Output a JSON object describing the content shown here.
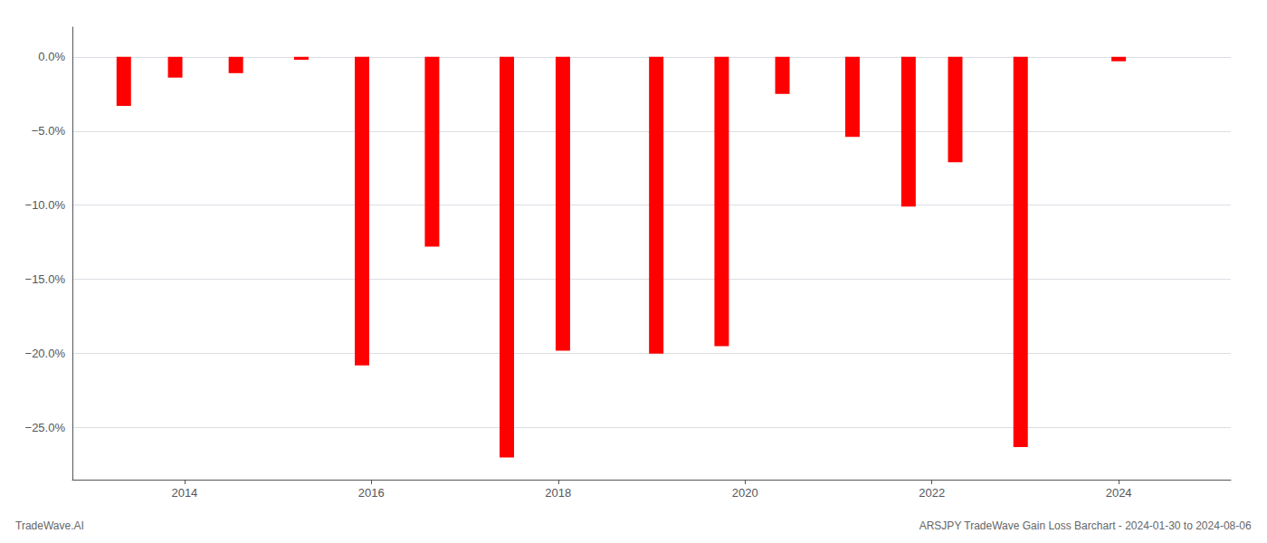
{
  "chart_data": {
    "type": "bar",
    "title": "ARSJPY TradeWave Gain Loss Barchart - 2024-01-30 to 2024-08-06",
    "annotations": [
      "TradeWave.AI"
    ],
    "x": [
      2013.35,
      2013.9,
      2014.55,
      2015.25,
      2015.9,
      2016.65,
      2017.45,
      2018.05,
      2019.05,
      2019.75,
      2020.4,
      2021.15,
      2021.75,
      2022.25,
      2022.95,
      2024.0
    ],
    "values": [
      -3.3,
      -1.4,
      -1.1,
      -0.2,
      -20.8,
      -12.8,
      -27.0,
      -19.8,
      -20.0,
      -19.5,
      -2.5,
      -5.4,
      -10.1,
      -7.1,
      -26.3,
      -0.3
    ],
    "color": "#ff0000",
    "xlim": [
      2012.8,
      2025.2
    ],
    "xticks": [
      2014,
      2016,
      2018,
      2020,
      2022,
      2024
    ],
    "ylim": [
      -28.5,
      2.0
    ],
    "yticks": [
      {
        "value": 0.0,
        "label": "0.0%"
      },
      {
        "value": -5.0,
        "label": "−5.0%"
      },
      {
        "value": -10.0,
        "label": "−10.0%"
      },
      {
        "value": -15.0,
        "label": "−15.0%"
      },
      {
        "value": -20.0,
        "label": "−20.0%"
      },
      {
        "value": -25.0,
        "label": "−25.0%"
      }
    ],
    "grid": true
  }
}
